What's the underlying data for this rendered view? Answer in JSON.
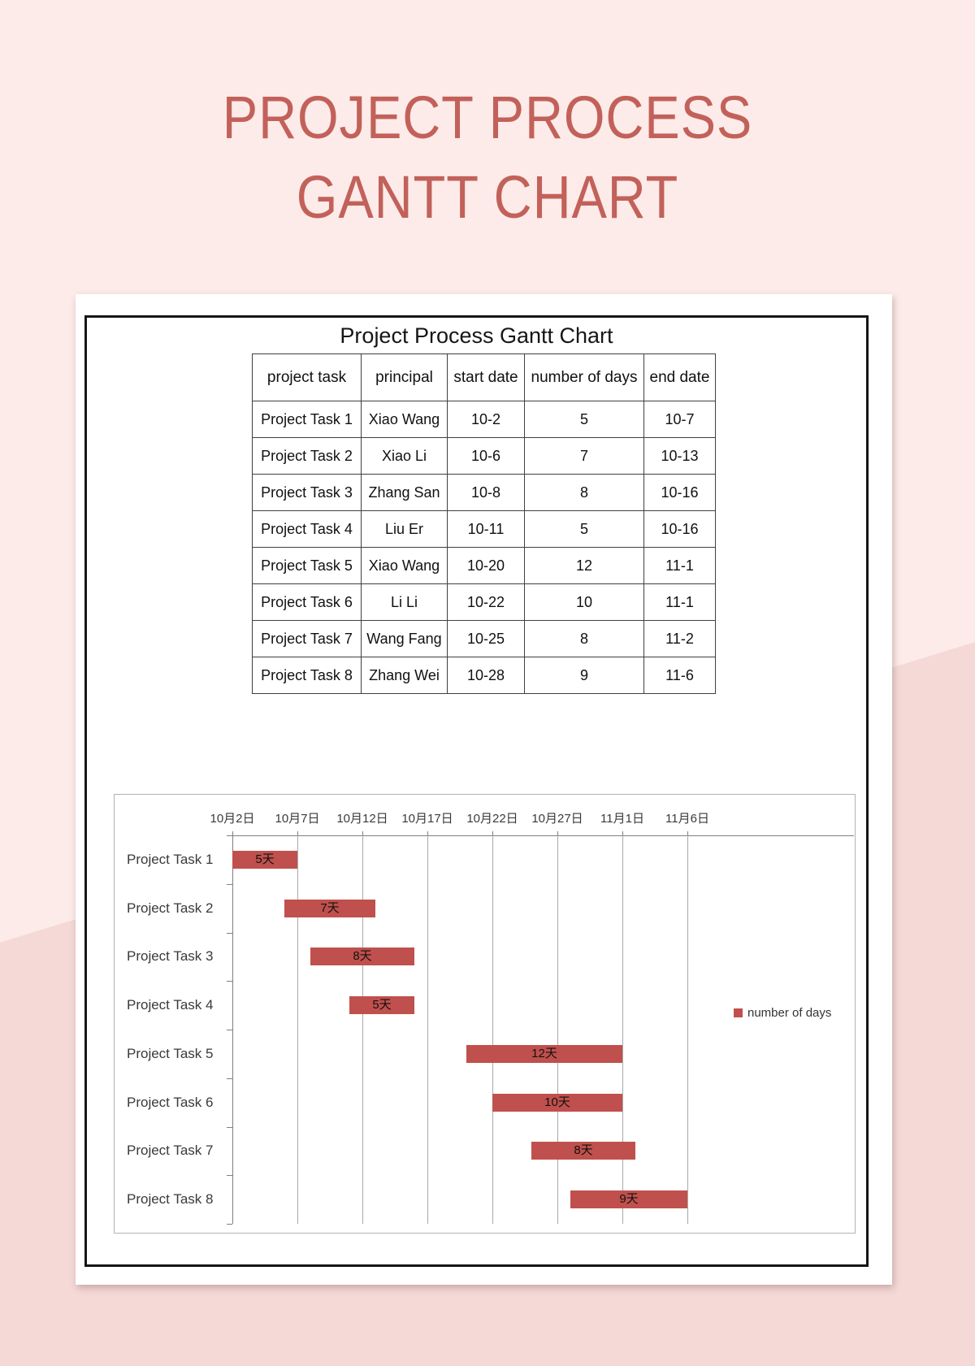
{
  "page_title": "PROJECT PROCESS GANTT CHART",
  "sheet": {
    "title": "Project Process Gantt Chart"
  },
  "table": {
    "columns": [
      "project task",
      "principal",
      "start date",
      "number of days",
      "end date"
    ],
    "rows": [
      [
        "Project Task 1",
        "Xiao Wang",
        "10-2",
        "5",
        "10-7"
      ],
      [
        "Project Task 2",
        "Xiao Li",
        "10-6",
        "7",
        "10-13"
      ],
      [
        "Project Task 3",
        "Zhang San",
        "10-8",
        "8",
        "10-16"
      ],
      [
        "Project Task 4",
        "Liu Er",
        "10-11",
        "5",
        "10-16"
      ],
      [
        "Project Task 5",
        "Xiao Wang",
        "10-20",
        "12",
        "11-1"
      ],
      [
        "Project Task 6",
        "Li Li",
        "10-22",
        "10",
        "11-1"
      ],
      [
        "Project Task 7",
        "Wang Fang",
        "10-25",
        "8",
        "11-2"
      ],
      [
        "Project Task 8",
        "Zhang Wei",
        "10-28",
        "9",
        "11-6"
      ]
    ]
  },
  "chart_data": {
    "type": "bar",
    "subtype": "gantt-horizontal",
    "title": "Project Process Gantt Chart",
    "categories": [
      "Project Task 1",
      "Project Task 2",
      "Project Task 3",
      "Project Task 4",
      "Project Task 5",
      "Project Task 6",
      "Project Task 7",
      "Project Task 8"
    ],
    "x_axis": {
      "origin_date": "10-2",
      "tick_labels": [
        "10月2日",
        "10月7日",
        "10月12日",
        "10月17日",
        "10月22日",
        "10月27日",
        "11月1日",
        "11月6日"
      ],
      "tick_day_offsets": [
        0,
        5,
        10,
        15,
        20,
        25,
        30,
        35
      ]
    },
    "series": [
      {
        "name": "number of days",
        "start_dates": [
          "10-2",
          "10-6",
          "10-8",
          "10-11",
          "10-20",
          "10-22",
          "10-25",
          "10-28"
        ],
        "start_day_offsets": [
          0,
          4,
          6,
          9,
          18,
          20,
          23,
          26
        ],
        "durations_days": [
          5,
          7,
          8,
          5,
          12,
          10,
          8,
          9
        ],
        "end_dates": [
          "10-7",
          "10-13",
          "10-16",
          "10-16",
          "11-1",
          "11-1",
          "11-2",
          "11-6"
        ],
        "bar_labels": [
          "5天",
          "7天",
          "8天",
          "5天",
          "12天",
          "10天",
          "8天",
          "9天"
        ]
      }
    ],
    "legend": {
      "label": "number of days",
      "position": "right"
    },
    "grid": "vertical",
    "colors": {
      "bar": "#c0504d",
      "gridline": "#a9a9a9",
      "axis": "#808080"
    }
  }
}
